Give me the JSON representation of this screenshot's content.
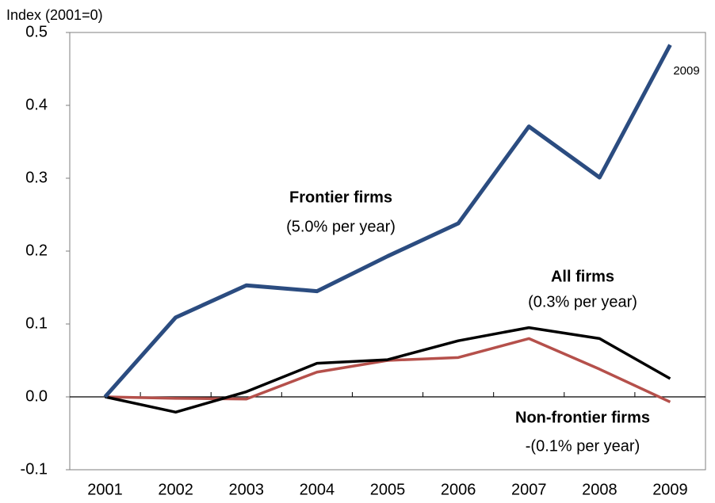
{
  "chart_data": {
    "type": "line",
    "y_label": "Index (2001=0)",
    "categories": [
      "2001",
      "2002",
      "2003",
      "2004",
      "2005",
      "2006",
      "2007",
      "2008",
      "2009"
    ],
    "series": [
      {
        "name": "Frontier firms",
        "color": "#2b4c80",
        "values": [
          0,
          0.109,
          0.153,
          0.145,
          0.193,
          0.238,
          0.371,
          0.301,
          0.483
        ]
      },
      {
        "name": "All firms",
        "color": "#000000",
        "values": [
          0,
          -0.021,
          0.007,
          0.046,
          0.051,
          0.077,
          0.095,
          0.08,
          0.025
        ]
      },
      {
        "name": "Non-frontier firms",
        "color": "#b5504b",
        "values": [
          0,
          -0.002,
          -0.003,
          0.034,
          0.05,
          0.054,
          0.08,
          0.038,
          -0.007
        ]
      }
    ],
    "annotations": [
      {
        "text": "Frontier firms",
        "color": "#2b4c80",
        "bold": true
      },
      {
        "text": "(5.0% per year)",
        "color": "#2b4c80",
        "bold": false
      },
      {
        "text": "All firms",
        "color": "#000000",
        "bold": true
      },
      {
        "text": "(0.3% per year)",
        "color": "#000000",
        "bold": false
      },
      {
        "text": "Non-frontier firms",
        "color": "#c00000",
        "bold": true
      },
      {
        "text": "-(0.1% per year)",
        "color": "#c00000",
        "bold": false
      },
      {
        "text": "2009",
        "color": "#000000",
        "bold": false
      }
    ],
    "ylim": [
      -0.1,
      0.5
    ],
    "yticks": [
      -0.1,
      {
        "value": 0,
        "label": "0.0"
      },
      0.1,
      0.2,
      0.3,
      0.4,
      0.5
    ],
    "grid": false
  }
}
